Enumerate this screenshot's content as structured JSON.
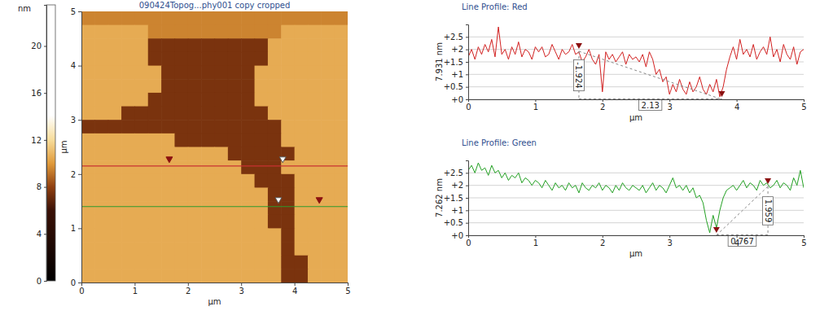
{
  "chart_data": [
    {
      "type": "heatmap",
      "title": "090424Topog...phy001 copy cropped",
      "xlabel": "µm",
      "ylabel": "µm",
      "xlim": [
        0,
        5
      ],
      "ylim": [
        0,
        5
      ],
      "xticks": [
        0,
        1,
        2,
        3,
        4,
        5
      ],
      "yticks": [
        0,
        1,
        2,
        3,
        4,
        5
      ],
      "z": [
        [
          9.5,
          9.5,
          9.5,
          9.5,
          9.5,
          9.5,
          9.5,
          9.5,
          9.5,
          9.5,
          9.5,
          9.5,
          9.5,
          9.5,
          9.5,
          9.5,
          9.5,
          9.5,
          9.5,
          9.5
        ],
        [
          10.5,
          10.5,
          10.5,
          10.5,
          10.5,
          9.5,
          9.5,
          9.5,
          9.5,
          9.5,
          9.5,
          9.5,
          9.5,
          9.5,
          9.5,
          10.5,
          10.5,
          10.5,
          10.5,
          10.5
        ],
        [
          10.5,
          10.5,
          10.5,
          10.5,
          10.5,
          7.5,
          7.5,
          7.5,
          7.5,
          7.5,
          7.5,
          7.5,
          7.5,
          7.5,
          10.5,
          10.5,
          10.5,
          10.5,
          10.5,
          10.5
        ],
        [
          10.5,
          10.5,
          10.5,
          10.5,
          10.5,
          7.5,
          7.5,
          7.5,
          7.5,
          7.5,
          7.5,
          7.5,
          7.5,
          7.5,
          10.5,
          10.5,
          10.5,
          10.5,
          10.5,
          10.5
        ],
        [
          10.5,
          10.5,
          10.5,
          10.5,
          10.5,
          10.5,
          7.5,
          7.5,
          7.5,
          7.5,
          7.5,
          7.5,
          7.5,
          10.5,
          10.5,
          10.5,
          10.5,
          10.5,
          10.5,
          10.5
        ],
        [
          10.5,
          10.5,
          10.5,
          10.5,
          10.5,
          10.5,
          7.5,
          7.5,
          7.5,
          7.5,
          7.5,
          7.5,
          7.5,
          10.5,
          10.5,
          10.5,
          10.5,
          10.5,
          10.5,
          10.5
        ],
        [
          10.5,
          10.5,
          10.5,
          10.5,
          10.5,
          7.5,
          7.5,
          7.5,
          7.5,
          7.5,
          7.5,
          7.5,
          7.5,
          10.5,
          10.5,
          10.5,
          10.5,
          10.5,
          10.5,
          10.5
        ],
        [
          10.5,
          10.5,
          10.5,
          7.5,
          7.5,
          7.5,
          7.5,
          7.5,
          7.5,
          7.5,
          7.5,
          7.5,
          7.5,
          7.5,
          10.5,
          10.5,
          10.5,
          10.5,
          10.5,
          10.5
        ],
        [
          7.5,
          7.5,
          7.5,
          7.5,
          7.5,
          7.5,
          7.5,
          7.5,
          7.5,
          7.5,
          7.5,
          7.5,
          7.5,
          7.5,
          7.5,
          10.5,
          10.5,
          10.5,
          10.5,
          10.5
        ],
        [
          10.5,
          10.5,
          10.5,
          10.5,
          10.5,
          10.5,
          10.5,
          7.5,
          7.5,
          7.5,
          7.5,
          7.5,
          7.5,
          7.5,
          7.5,
          10.5,
          10.5,
          10.5,
          10.5,
          10.5
        ],
        [
          10.5,
          10.5,
          10.5,
          10.5,
          10.5,
          10.5,
          10.5,
          10.5,
          10.5,
          10.5,
          10.5,
          7.5,
          7.5,
          7.5,
          7.5,
          7.5,
          10.5,
          10.5,
          10.5,
          10.5
        ],
        [
          10.5,
          10.5,
          10.5,
          10.5,
          10.5,
          10.5,
          10.5,
          10.5,
          10.5,
          10.5,
          10.5,
          10.5,
          7.5,
          7.5,
          7.5,
          10.5,
          10.5,
          10.5,
          10.5,
          10.5
        ],
        [
          10.5,
          10.5,
          10.5,
          10.5,
          10.5,
          10.5,
          10.5,
          10.5,
          10.5,
          10.5,
          10.5,
          10.5,
          10.5,
          7.5,
          7.5,
          7.5,
          10.5,
          10.5,
          10.5,
          10.5
        ],
        [
          10.5,
          10.5,
          10.5,
          10.5,
          10.5,
          10.5,
          10.5,
          10.5,
          10.5,
          10.5,
          10.5,
          10.5,
          10.5,
          10.5,
          7.5,
          7.5,
          10.5,
          10.5,
          10.5,
          10.5
        ],
        [
          10.5,
          10.5,
          10.5,
          10.5,
          10.5,
          10.5,
          10.5,
          10.5,
          10.5,
          10.5,
          10.5,
          10.5,
          10.5,
          10.5,
          7.5,
          7.5,
          10.5,
          10.5,
          10.5,
          10.5
        ],
        [
          10.5,
          10.5,
          10.5,
          10.5,
          10.5,
          10.5,
          10.5,
          10.5,
          10.5,
          10.5,
          10.5,
          10.5,
          10.5,
          10.5,
          7.5,
          7.5,
          10.5,
          10.5,
          10.5,
          10.5
        ],
        [
          10.5,
          10.5,
          10.5,
          10.5,
          10.5,
          10.5,
          10.5,
          10.5,
          10.5,
          10.5,
          10.5,
          10.5,
          10.5,
          10.5,
          10.5,
          7.5,
          10.5,
          10.5,
          10.5,
          10.5
        ],
        [
          10.5,
          10.5,
          10.5,
          10.5,
          10.5,
          10.5,
          10.5,
          10.5,
          10.5,
          10.5,
          10.5,
          10.5,
          10.5,
          10.5,
          10.5,
          7.5,
          10.5,
          10.5,
          10.5,
          10.5
        ],
        [
          10.5,
          10.5,
          10.5,
          10.5,
          10.5,
          10.5,
          10.5,
          10.5,
          10.5,
          10.5,
          10.5,
          10.5,
          10.5,
          10.5,
          10.5,
          7.5,
          7.5,
          10.5,
          10.5,
          10.5
        ],
        [
          10.5,
          10.5,
          10.5,
          10.5,
          10.5,
          10.5,
          10.5,
          10.5,
          10.5,
          10.5,
          10.5,
          10.5,
          10.5,
          10.5,
          10.5,
          7.5,
          7.5,
          10.5,
          10.5,
          10.5
        ]
      ],
      "colorbar": {
        "label": "nm",
        "range": [
          0,
          23.5
        ],
        "ticks": [
          0,
          4,
          8,
          12,
          16,
          20
        ]
      },
      "lines": [
        {
          "color": "#c83232",
          "y": 2.15
        },
        {
          "color": "#2e9a2e",
          "y": 1.4
        }
      ]
    },
    {
      "type": "line",
      "title": "Line Profile: Red",
      "xlabel": "µm",
      "ylabel": "7.931 nm",
      "xlim": [
        0,
        5
      ],
      "ylim": [
        0,
        3
      ],
      "xticks": [
        0,
        1,
        2,
        3,
        4,
        5
      ],
      "yticks": [
        {
          "value": 0,
          "label": "+0"
        },
        {
          "value": 0.5,
          "label": "+0.5"
        },
        {
          "value": 1,
          "label": "+1"
        },
        {
          "value": 1.5,
          "label": "+1.5"
        },
        {
          "value": 2,
          "label": "+2"
        },
        {
          "value": 2.5,
          "label": "+2.5"
        }
      ],
      "grid": true,
      "x": [
        0,
        0.05,
        0.1,
        0.15,
        0.2,
        0.25,
        0.3,
        0.35,
        0.4,
        0.45,
        0.5,
        0.55,
        0.6,
        0.65,
        0.7,
        0.75,
        0.8,
        0.85,
        0.9,
        0.95,
        1,
        1.05,
        1.1,
        1.15,
        1.2,
        1.25,
        1.3,
        1.35,
        1.4,
        1.45,
        1.5,
        1.55,
        1.6,
        1.65,
        1.7,
        1.75,
        1.8,
        1.85,
        1.9,
        1.95,
        2,
        2.05,
        2.1,
        2.15,
        2.2,
        2.25,
        2.3,
        2.35,
        2.4,
        2.45,
        2.5,
        2.55,
        2.6,
        2.65,
        2.7,
        2.75,
        2.8,
        2.85,
        2.9,
        2.95,
        3,
        3.05,
        3.1,
        3.15,
        3.2,
        3.25,
        3.3,
        3.35,
        3.4,
        3.45,
        3.5,
        3.55,
        3.6,
        3.65,
        3.7,
        3.75,
        3.8,
        3.85,
        3.9,
        3.95,
        4,
        4.05,
        4.1,
        4.15,
        4.2,
        4.25,
        4.3,
        4.35,
        4.4,
        4.45,
        4.5,
        4.55,
        4.6,
        4.65,
        4.7,
        4.75,
        4.8,
        4.85,
        4.9,
        4.95,
        5
      ],
      "series": [
        {
          "color": "#d22020",
          "values": [
            1.7,
            2.0,
            1.6,
            2.1,
            1.8,
            2.2,
            1.9,
            2.4,
            1.7,
            2.9,
            1.8,
            2.0,
            1.6,
            2.1,
            1.8,
            2.3,
            1.7,
            2.0,
            1.9,
            1.6,
            2.1,
            1.9,
            2.1,
            1.7,
            1.8,
            2.2,
            1.9,
            1.6,
            2.0,
            1.8,
            1.9,
            2.2,
            1.8,
            1.9,
            1.5,
            1.7,
            2.0,
            1.6,
            1.4,
            1.8,
            0.3,
            1.9,
            1.6,
            1.8,
            1.5,
            1.7,
            1.9,
            1.4,
            1.8,
            1.6,
            1.7,
            1.5,
            1.8,
            1.3,
            1.9,
            1.6,
            1.0,
            1.2,
            0.7,
            0.9,
            0.2,
            0.6,
            0.3,
            0.8,
            0.4,
            0.2,
            0.7,
            0.3,
            0.5,
            0.9,
            0.4,
            0.2,
            0.6,
            0.3,
            0.8,
            0.1,
            0.5,
            1.2,
            1.7,
            2.1,
            1.6,
            2.4,
            1.8,
            2.0,
            1.7,
            2.2,
            1.6,
            1.9,
            2.1,
            1.8,
            2.5,
            1.7,
            2.0,
            1.5,
            2.2,
            1.8,
            1.6,
            2.1,
            1.4,
            1.9,
            2.0
          ]
        }
      ],
      "cursors": [
        {
          "x": 1.65,
          "y": 1.924
        },
        {
          "x": 3.78,
          "y": 0
        }
      ],
      "annotations": {
        "dy": "-1.924",
        "dx": "2.13"
      }
    },
    {
      "type": "line",
      "title": "Line Profile: Green",
      "xlabel": "µm",
      "ylabel": "7.262 nm",
      "xlim": [
        0,
        5
      ],
      "ylim": [
        0,
        3
      ],
      "xticks": [
        0,
        1,
        2,
        3,
        4,
        5
      ],
      "yticks": [
        {
          "value": 0,
          "label": "+0"
        },
        {
          "value": 0.5,
          "label": "+0.5"
        },
        {
          "value": 1,
          "label": "+1"
        },
        {
          "value": 1.5,
          "label": "+1.5"
        },
        {
          "value": 2,
          "label": "+2"
        },
        {
          "value": 2.5,
          "label": "+2.5"
        }
      ],
      "grid": true,
      "x": [
        0,
        0.05,
        0.1,
        0.15,
        0.2,
        0.25,
        0.3,
        0.35,
        0.4,
        0.45,
        0.5,
        0.55,
        0.6,
        0.65,
        0.7,
        0.75,
        0.8,
        0.85,
        0.9,
        0.95,
        1,
        1.05,
        1.1,
        1.15,
        1.2,
        1.25,
        1.3,
        1.35,
        1.4,
        1.45,
        1.5,
        1.55,
        1.6,
        1.65,
        1.7,
        1.75,
        1.8,
        1.85,
        1.9,
        1.95,
        2,
        2.05,
        2.1,
        2.15,
        2.2,
        2.25,
        2.3,
        2.35,
        2.4,
        2.45,
        2.5,
        2.55,
        2.6,
        2.65,
        2.7,
        2.75,
        2.8,
        2.85,
        2.9,
        2.95,
        3,
        3.05,
        3.1,
        3.15,
        3.2,
        3.25,
        3.3,
        3.35,
        3.4,
        3.45,
        3.5,
        3.55,
        3.6,
        3.65,
        3.7,
        3.75,
        3.8,
        3.85,
        3.9,
        3.95,
        4,
        4.05,
        4.1,
        4.15,
        4.2,
        4.25,
        4.3,
        4.35,
        4.4,
        4.45,
        4.5,
        4.55,
        4.6,
        4.65,
        4.7,
        4.75,
        4.8,
        4.85,
        4.9,
        4.95,
        5
      ],
      "series": [
        {
          "color": "#22a022",
          "values": [
            2.6,
            2.8,
            2.5,
            2.9,
            2.6,
            2.7,
            2.4,
            2.8,
            2.5,
            2.6,
            2.3,
            2.5,
            2.2,
            2.4,
            2.3,
            2.5,
            2.1,
            2.3,
            2.2,
            2.0,
            2.2,
            2.1,
            1.9,
            2.2,
            2.0,
            1.8,
            2.1,
            1.9,
            2.0,
            1.8,
            2.1,
            1.9,
            2.0,
            1.7,
            2.1,
            1.9,
            1.8,
            2.0,
            1.9,
            2.1,
            1.8,
            2.0,
            1.9,
            1.7,
            2.0,
            1.8,
            2.1,
            1.9,
            1.8,
            2.0,
            1.9,
            1.8,
            2.0,
            1.7,
            1.9,
            2.1,
            1.8,
            2.0,
            1.9,
            1.7,
            2.0,
            2.3,
            1.9,
            2.0,
            1.8,
            2.0,
            1.7,
            1.9,
            1.5,
            1.6,
            1.3,
            0.6,
            0.1,
            0.8,
            0.3,
            1.0,
            1.5,
            1.8,
            1.9,
            2.0,
            1.8,
            2.0,
            2.2,
            1.9,
            2.1,
            2.0,
            1.8,
            2.2,
            2.0,
            2.1,
            1.9,
            2.0,
            2.2,
            1.9,
            2.1,
            2.0,
            1.8,
            2.3,
            2.0,
            2.6,
            1.9
          ]
        }
      ],
      "cursors": [
        {
          "x": 3.7,
          "y": 0
        },
        {
          "x": 4.467,
          "y": 1.959
        }
      ],
      "annotations": {
        "dy": "1.959",
        "dx": "0.767"
      }
    }
  ]
}
